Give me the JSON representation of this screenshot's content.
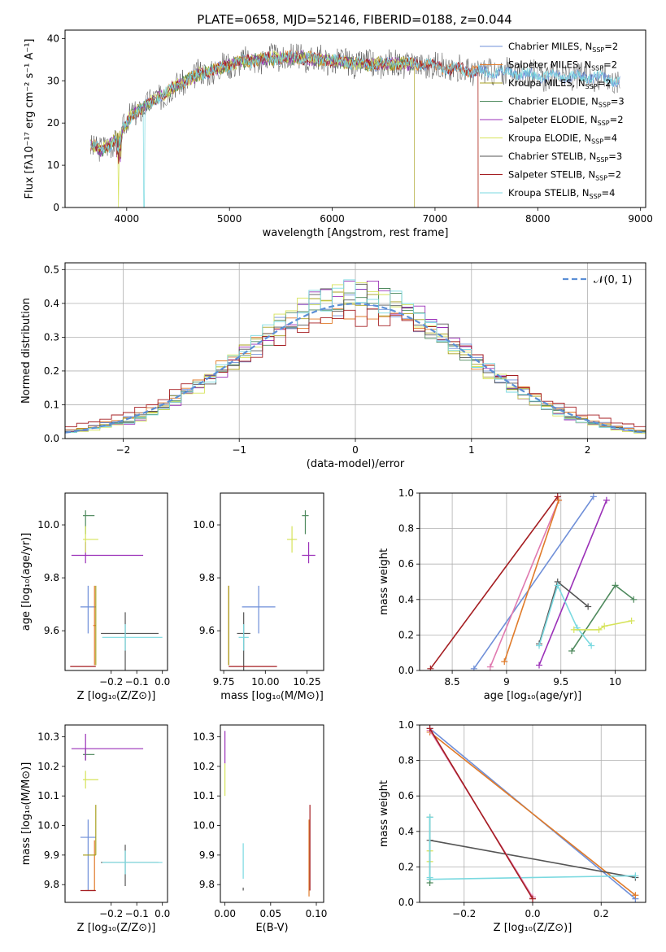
{
  "figure_title": "PLATE=0658, MJD=52146, FIBERID=0188, z=0.044",
  "colors": {
    "Chabrier MILES": "#6f8fd8",
    "Salpeter MILES": "#e07b2a",
    "Kroupa MILES": "#a8a020",
    "Chabrier ELODIE": "#4f8a5e",
    "Salpeter ELODIE": "#9b30b8",
    "Kroupa ELODIE": "#d6e35a",
    "Chabrier STELIB": "#555555",
    "Salpeter STELIB": "#a51e22",
    "Kroupa STELIB": "#7ad9e0",
    "normal": "#5b8fd6"
  },
  "chart_data": [
    {
      "id": "spectrum",
      "type": "line",
      "xlabel": "wavelength [Angstrom, rest frame]",
      "ylabel": "Flux [fλ10⁻¹⁷ erg cm⁻² s⁻¹ A⁻¹]",
      "xlim": [
        3400,
        9050
      ],
      "ylim": [
        0,
        42
      ],
      "xticks": [
        4000,
        5000,
        6000,
        7000,
        8000,
        9000
      ],
      "yticks": [
        0,
        10,
        20,
        30,
        40
      ],
      "legend_position": "upper-right",
      "legend": [
        {
          "name": "Chabrier MILES",
          "nssp": "2"
        },
        {
          "name": "Salpeter MILES",
          "nssp": "2"
        },
        {
          "name": "Kroupa MILES",
          "nssp": "2"
        },
        {
          "name": "Chabrier ELODIE",
          "nssp": "3"
        },
        {
          "name": "Salpeter ELODIE",
          "nssp": "2"
        },
        {
          "name": "Kroupa ELODIE",
          "nssp": "4"
        },
        {
          "name": "Chabrier STELIB",
          "nssp": "3"
        },
        {
          "name": "Salpeter STELIB",
          "nssp": "2"
        },
        {
          "name": "Kroupa STELIB",
          "nssp": "4"
        }
      ],
      "continuum": {
        "x": [
          3650,
          3750,
          3850,
          3950,
          4050,
          4150,
          4300,
          4500,
          4700,
          4900,
          5100,
          5300,
          5500,
          5700,
          5900,
          6100,
          6300,
          6500,
          6700,
          6900,
          7100,
          7300,
          7500,
          7700,
          7900,
          8100,
          8300,
          8500,
          8700,
          8800
        ],
        "y": [
          15,
          13.5,
          15,
          18,
          22,
          23.5,
          26,
          29,
          31.5,
          33,
          34.5,
          35,
          35.5,
          35.5,
          35,
          34.5,
          34,
          34,
          34,
          34,
          33,
          32.5,
          32,
          32,
          31.5,
          31,
          31,
          31,
          30.5,
          30
        ]
      },
      "notes": {
        "kroupa_miles_end": 6800,
        "salpeter_miles_end": 7420,
        "salpeter_stelib_end": 7420,
        "kroupa_stelib_blue_end": 4170,
        "kroupa_elodie_blue_end": 3920
      }
    },
    {
      "id": "residuals",
      "type": "histogram",
      "xlabel": "(data-model)/error",
      "ylabel": "Normed distribution",
      "xlim": [
        -2.5,
        2.5
      ],
      "ylim": [
        0,
        0.52
      ],
      "xticks": [
        -2,
        -1,
        0,
        1,
        2
      ],
      "yticks": [
        0,
        0.1,
        0.2,
        0.3,
        0.4,
        0.5
      ],
      "grid": true,
      "legend_label": "𝒩(0, 1)",
      "legend_position": "upper-right",
      "bin_width": 0.1,
      "bin_start": -2.5,
      "series": [
        {
          "name": "Chabrier MILES",
          "sigma": 1.0,
          "seed": 1
        },
        {
          "name": "Salpeter MILES",
          "sigma": 1.02,
          "seed": 2
        },
        {
          "name": "Kroupa MILES",
          "sigma": 0.97,
          "seed": 3
        },
        {
          "name": "Chabrier ELODIE",
          "sigma": 0.95,
          "seed": 4
        },
        {
          "name": "Salpeter ELODIE",
          "sigma": 0.93,
          "seed": 5
        },
        {
          "name": "Kroupa ELODIE",
          "sigma": 0.92,
          "seed": 6
        },
        {
          "name": "Chabrier STELIB",
          "sigma": 0.96,
          "seed": 7
        },
        {
          "name": "Salpeter STELIB",
          "sigma": 1.1,
          "seed": 8
        },
        {
          "name": "Kroupa STELIB",
          "sigma": 0.94,
          "seed": 9
        }
      ]
    },
    {
      "id": "age-vs-Z",
      "type": "errorbar",
      "xlabel": "Z [log₁₀(Z/Z⊙)]",
      "ylabel": "age  [log₁₀(age/yr)]",
      "xlim": [
        -0.38,
        0.02
      ],
      "ylim": [
        9.45,
        10.12
      ],
      "xticks": [
        -0.2,
        -0.1,
        0.0
      ],
      "xticklabels": [
        "−0.2",
        "−0.1",
        "0.0"
      ],
      "yticks": [
        9.6,
        9.8,
        10.0
      ],
      "points": [
        {
          "name": "Chabrier MILES",
          "x": -0.29,
          "y": 9.69,
          "xerr": [
            0.03,
            0.03
          ],
          "yerr": [
            0.1,
            0.08
          ]
        },
        {
          "name": "Salpeter MILES",
          "x": -0.265,
          "y": 9.62,
          "xerr": [
            0.005,
            0.005
          ],
          "yerr": [
            0.15,
            0.15
          ]
        },
        {
          "name": "Kroupa MILES",
          "x": -0.26,
          "y": 9.62,
          "xerr": [
            0.0,
            0.0
          ],
          "yerr": [
            0.15,
            0.15
          ]
        },
        {
          "name": "Chabrier ELODIE",
          "x": -0.3,
          "y": 10.035,
          "xerr": [
            0.01,
            0.035
          ],
          "yerr": [
            0.07,
            0.02
          ]
        },
        {
          "name": "Salpeter ELODIE",
          "x": -0.3,
          "y": 9.885,
          "xerr": [
            0.055,
            0.225
          ],
          "yerr": [
            0.03,
            0.05
          ]
        },
        {
          "name": "Kroupa ELODIE",
          "x": -0.3,
          "y": 9.945,
          "xerr": [
            0.01,
            0.05
          ],
          "yerr": [
            0.05,
            0.05
          ]
        },
        {
          "name": "Chabrier STELIB",
          "x": -0.145,
          "y": 9.59,
          "xerr": [
            0.095,
            0.13
          ],
          "yerr": [
            0.14,
            0.08
          ]
        },
        {
          "name": "Salpeter STELIB",
          "x": -0.27,
          "y": 9.465,
          "xerr": [
            0.09,
            0.01
          ],
          "yerr": [
            0.0,
            0.0
          ]
        },
        {
          "name": "Kroupa STELIB",
          "x": -0.145,
          "y": 9.575,
          "xerr": [
            0.09,
            0.145
          ],
          "yerr": [
            0.05,
            0.05
          ]
        }
      ]
    },
    {
      "id": "age-vs-mass",
      "type": "errorbar",
      "xlabel": "mass [log₁₀(M/M⊙)]",
      "xlim": [
        9.73,
        10.35
      ],
      "ylim": [
        9.45,
        10.12
      ],
      "xticks": [
        9.75,
        10.0,
        10.25
      ],
      "xticklabels": [
        "9.75",
        "10.00",
        "10.25"
      ],
      "yticks": [
        9.6,
        9.8,
        10.0
      ],
      "points": [
        {
          "name": "Chabrier MILES",
          "x": 9.96,
          "y": 9.69,
          "xerr": [
            0.1,
            0.1
          ],
          "yerr": [
            0.1,
            0.08
          ]
        },
        {
          "name": "Salpeter MILES",
          "x": 9.78,
          "y": 9.62,
          "xerr": [
            0.0,
            0.0
          ],
          "yerr": [
            0.15,
            0.15
          ]
        },
        {
          "name": "Kroupa MILES",
          "x": 9.78,
          "y": 9.62,
          "xerr": [
            0.0,
            0.0
          ],
          "yerr": [
            0.15,
            0.15
          ]
        },
        {
          "name": "Chabrier ELODIE",
          "x": 10.24,
          "y": 10.035,
          "xerr": [
            0.02,
            0.02
          ],
          "yerr": [
            0.07,
            0.02
          ]
        },
        {
          "name": "Salpeter ELODIE",
          "x": 10.26,
          "y": 9.885,
          "xerr": [
            0.04,
            0.04
          ],
          "yerr": [
            0.03,
            0.05
          ]
        },
        {
          "name": "Kroupa ELODIE",
          "x": 10.16,
          "y": 9.945,
          "xerr": [
            0.03,
            0.03
          ],
          "yerr": [
            0.05,
            0.05
          ]
        },
        {
          "name": "Chabrier STELIB",
          "x": 9.87,
          "y": 9.59,
          "xerr": [
            0.04,
            0.04
          ],
          "yerr": [
            0.14,
            0.08
          ]
        },
        {
          "name": "Salpeter STELIB",
          "x": 9.9,
          "y": 9.465,
          "xerr": [
            0.12,
            0.17
          ],
          "yerr": [
            0.0,
            0.0
          ]
        },
        {
          "name": "Kroupa STELIB",
          "x": 9.87,
          "y": 9.575,
          "xerr": [
            0.03,
            0.03
          ],
          "yerr": [
            0.05,
            0.05
          ]
        }
      ]
    },
    {
      "id": "massweight-vs-age",
      "type": "line",
      "xlabel": "age  [log₁₀(age/yr)]",
      "ylabel": "mass weight",
      "xlim": [
        8.2,
        10.28
      ],
      "ylim": [
        0,
        1.0
      ],
      "xticks": [
        8.5,
        9.0,
        9.5,
        10.0
      ],
      "yticks": [
        0,
        0.2,
        0.4,
        0.6,
        0.8,
        1.0
      ],
      "grid": true,
      "series": [
        {
          "name": "Salpeter STELIB",
          "x": [
            8.3,
            9.47
          ],
          "y": [
            0.01,
            0.98
          ]
        },
        {
          "name": "Chabrier MILES",
          "x": [
            8.7,
            9.8
          ],
          "y": [
            0.01,
            0.98
          ]
        },
        {
          "name": "Pink",
          "color": "#e07ab0",
          "x": [
            8.85,
            9.48
          ],
          "y": [
            0.02,
            0.96
          ]
        },
        {
          "name": "Salpeter MILES",
          "x": [
            8.98,
            9.48
          ],
          "y": [
            0.05,
            0.96
          ]
        },
        {
          "name": "Salpeter ELODIE",
          "x": [
            9.3,
            9.92
          ],
          "y": [
            0.03,
            0.96
          ]
        },
        {
          "name": "Chabrier ELODIE",
          "x": [
            9.6,
            10.0,
            10.17
          ],
          "y": [
            0.11,
            0.48,
            0.4
          ]
        },
        {
          "name": "Chabrier STELIB",
          "x": [
            9.3,
            9.47,
            9.75
          ],
          "y": [
            0.15,
            0.5,
            0.36
          ]
        },
        {
          "name": "Kroupa STELIB",
          "x": [
            9.3,
            9.47,
            9.65,
            9.78
          ],
          "y": [
            0.14,
            0.48,
            0.24,
            0.14
          ]
        },
        {
          "name": "Kroupa ELODIE",
          "x": [
            9.62,
            9.85,
            9.9,
            10.15
          ],
          "y": [
            0.23,
            0.23,
            0.25,
            0.28
          ]
        }
      ]
    },
    {
      "id": "mass-vs-Z",
      "type": "errorbar",
      "xlabel": "Z [log₁₀(Z/Z⊙)]",
      "ylabel": "mass [log₁₀(M/M⊙)]",
      "xlim": [
        -0.38,
        0.02
      ],
      "ylim": [
        9.74,
        10.34
      ],
      "xticks": [
        -0.2,
        -0.1,
        0.0
      ],
      "xticklabels": [
        "−0.2",
        "−0.1",
        "0.0"
      ],
      "yticks": [
        9.8,
        9.9,
        10.0,
        10.1,
        10.2,
        10.3
      ],
      "points": [
        {
          "name": "Chabrier MILES",
          "x": -0.29,
          "y": 9.96,
          "xerr": [
            0.03,
            0.03
          ],
          "yerr": [
            0.18,
            0.06
          ]
        },
        {
          "name": "Salpeter MILES",
          "x": -0.265,
          "y": 9.78,
          "xerr": [
            0.035,
            0.0
          ],
          "yerr": [
            0.0,
            0.17
          ]
        },
        {
          "name": "Kroupa MILES",
          "x": -0.26,
          "y": 9.9,
          "xerr": [
            0.05,
            0.0
          ],
          "yerr": [
            0.0,
            0.17
          ]
        },
        {
          "name": "Chabrier ELODIE",
          "x": -0.3,
          "y": 10.24,
          "xerr": [
            0.01,
            0.035
          ],
          "yerr": [
            0.02,
            0.02
          ]
        },
        {
          "name": "Salpeter ELODIE",
          "x": -0.3,
          "y": 10.26,
          "xerr": [
            0.055,
            0.225
          ],
          "yerr": [
            0.04,
            0.05
          ]
        },
        {
          "name": "Kroupa ELODIE",
          "x": -0.3,
          "y": 10.155,
          "xerr": [
            0.01,
            0.05
          ],
          "yerr": [
            0.03,
            0.03
          ]
        },
        {
          "name": "Chabrier STELIB",
          "x": -0.145,
          "y": 9.875,
          "xerr": [
            0.095,
            0.13
          ],
          "yerr": [
            0.08,
            0.06
          ]
        },
        {
          "name": "Salpeter STELIB",
          "x": -0.27,
          "y": 9.78,
          "xerr": [
            0.05,
            0.01
          ],
          "yerr": [
            0.0,
            0.0
          ]
        },
        {
          "name": "Kroupa STELIB",
          "x": -0.145,
          "y": 9.875,
          "xerr": [
            0.09,
            0.145
          ],
          "yerr": [
            0.04,
            0.04
          ]
        }
      ]
    },
    {
      "id": "mass-vs-EBV",
      "type": "errorbar",
      "xlabel": "E(B-V)",
      "xlim": [
        -0.005,
        0.108
      ],
      "ylim": [
        9.74,
        10.34
      ],
      "xticks": [
        0.0,
        0.05,
        0.1
      ],
      "xticklabels": [
        "0.00",
        "0.05",
        "0.10"
      ],
      "yticks": [
        9.8,
        9.9,
        10.0,
        10.1,
        10.2,
        10.3
      ],
      "points": [
        {
          "name": "Salpeter ELODIE",
          "x": 0.0,
          "y": 10.26,
          "xerr": [
            0.0,
            0.0
          ],
          "yerr": [
            0.05,
            0.06
          ]
        },
        {
          "name": "Kroupa ELODIE",
          "x": 0.0,
          "y": 10.15,
          "xerr": [
            0.0,
            0.0
          ],
          "yerr": [
            0.05,
            0.06
          ]
        },
        {
          "name": "Kroupa STELIB",
          "x": 0.02,
          "y": 9.86,
          "xerr": [
            0.0,
            0.0
          ],
          "yerr": [
            0.04,
            0.08
          ]
        },
        {
          "name": "Chabrier STELIB",
          "x": 0.02,
          "y": 9.79,
          "xerr": [
            0.0,
            0.0
          ],
          "yerr": [
            0.01,
            0.0
          ]
        },
        {
          "name": "Salpeter MILES",
          "x": 0.092,
          "y": 9.9,
          "xerr": [
            0.0,
            0.0
          ],
          "yerr": [
            0.14,
            0.12
          ]
        },
        {
          "name": "Salpeter STELIB",
          "x": 0.093,
          "y": 9.9,
          "xerr": [
            0.0,
            0.0
          ],
          "yerr": [
            0.12,
            0.17
          ]
        }
      ]
    },
    {
      "id": "massweight-vs-Z",
      "type": "line",
      "xlabel": "Z [log₁₀(Z/Z⊙)]",
      "ylabel": "mass weight",
      "xlim": [
        -0.33,
        0.33
      ],
      "ylim": [
        0,
        1.0
      ],
      "xticks": [
        -0.2,
        0.0,
        0.2
      ],
      "xticklabels": [
        "−0.2",
        "0.0",
        "0.2"
      ],
      "yticks": [
        0,
        0.2,
        0.4,
        0.6,
        0.8,
        1.0
      ],
      "grid": true,
      "series": [
        {
          "name": "Chabrier MILES",
          "x": [
            -0.3,
            0.3
          ],
          "y": [
            0.98,
            0.02
          ]
        },
        {
          "name": "Salpeter MILES",
          "x": [
            -0.3,
            0.3
          ],
          "y": [
            0.96,
            0.04
          ]
        },
        {
          "name": "Chabrier STELIB",
          "x": [
            -0.3,
            0.3
          ],
          "y": [
            0.35,
            0.14
          ]
        },
        {
          "name": "Kroupa STELIB",
          "x": [
            -0.3,
            0.3
          ],
          "y": [
            0.13,
            0.15
          ]
        },
        {
          "name": "Pink",
          "color": "#e07ab0",
          "x": [
            -0.3,
            0.0
          ],
          "y": [
            0.97,
            0.03
          ]
        },
        {
          "name": "Salpeter STELIB",
          "x": [
            -0.3,
            0.0
          ],
          "y": [
            0.98,
            0.02
          ]
        },
        {
          "name": "Kroupa ELODIE",
          "x": [
            -0.3,
            -0.3
          ],
          "y": [
            0.23,
            0.29
          ]
        },
        {
          "name": "Chabrier ELODIE",
          "x": [
            -0.3,
            -0.3
          ],
          "y": [
            0.11,
            0.48
          ]
        },
        {
          "name": "Kroupa STELIB",
          "x": [
            -0.3,
            -0.3
          ],
          "y": [
            0.14,
            0.48
          ]
        }
      ]
    }
  ]
}
